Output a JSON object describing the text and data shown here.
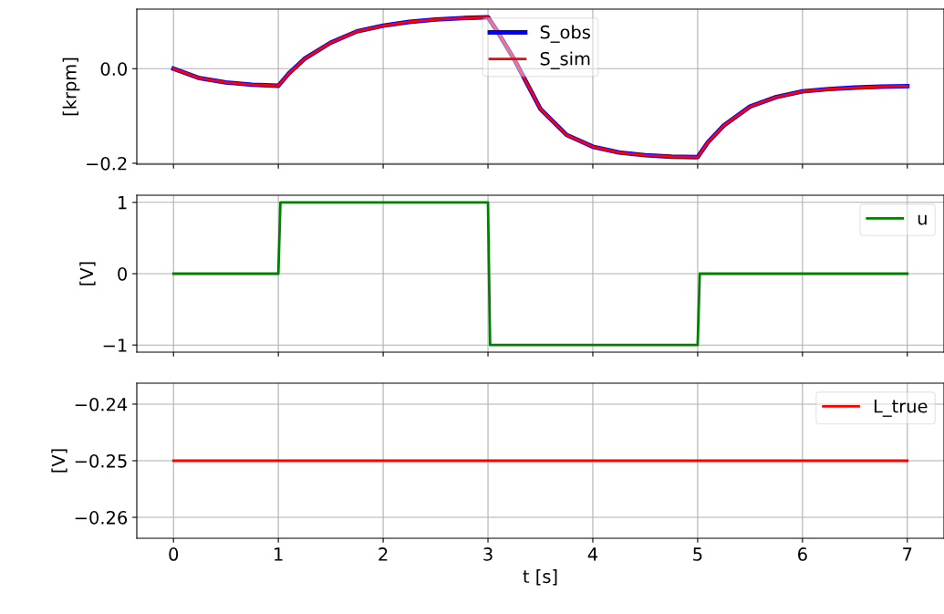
{
  "chart_data": [
    {
      "type": "line",
      "ylabel": "[krpm]",
      "legend": "top",
      "grid": true,
      "tick_labels": "y",
      "x": [
        0,
        0.25,
        0.5,
        0.75,
        1,
        1.1,
        1.25,
        1.5,
        1.75,
        2,
        2.25,
        2.5,
        2.75,
        3,
        3.1,
        3.25,
        3.5,
        3.75,
        4,
        4.25,
        4.5,
        4.75,
        5,
        5.1,
        5.25,
        5.5,
        5.75,
        6,
        6.25,
        6.5,
        6.75,
        7
      ],
      "series": [
        {
          "name": "S_obs",
          "color": "#0000ff",
          "values": [
            0,
            -0.02,
            -0.029,
            -0.034,
            -0.036,
            -0.01,
            0.021,
            0.055,
            0.079,
            0.091,
            0.099,
            0.104,
            0.107,
            0.109,
            0.075,
            0.02,
            -0.085,
            -0.14,
            -0.165,
            -0.177,
            -0.183,
            -0.186,
            -0.187,
            -0.155,
            -0.12,
            -0.08,
            -0.06,
            -0.048,
            -0.043,
            -0.04,
            -0.038,
            -0.037
          ]
        },
        {
          "name": "S_sim",
          "color": "#ff0000",
          "values": [
            0,
            -0.02,
            -0.029,
            -0.034,
            -0.036,
            -0.01,
            0.021,
            0.055,
            0.079,
            0.091,
            0.099,
            0.104,
            0.107,
            0.109,
            0.075,
            0.02,
            -0.085,
            -0.14,
            -0.165,
            -0.177,
            -0.183,
            -0.186,
            -0.187,
            -0.155,
            -0.12,
            -0.08,
            -0.06,
            -0.048,
            -0.043,
            -0.04,
            -0.038,
            -0.037
          ]
        }
      ],
      "xlim": [
        -0.35,
        7.35
      ],
      "xticks": [
        0,
        1,
        2,
        3,
        4,
        5,
        6,
        7
      ],
      "ylim": [
        -0.202,
        0.126
      ],
      "yticks": [
        {
          "value": 0,
          "label": "0.0"
        },
        {
          "value": -0.2,
          "label": "−0.2"
        }
      ]
    },
    {
      "type": "line",
      "ylabel": "[V]",
      "legend": "top right",
      "grid": true,
      "tick_labels": "y",
      "x": [
        0,
        1,
        1.02,
        3,
        3.02,
        5,
        5.02,
        7
      ],
      "series": [
        {
          "name": "u",
          "color": "#008000",
          "values": [
            0,
            0,
            1,
            1,
            -1,
            -1,
            0,
            0
          ]
        }
      ],
      "xlim": [
        -0.35,
        7.35
      ],
      "xticks": [
        0,
        1,
        2,
        3,
        4,
        5,
        6,
        7
      ],
      "ylim": [
        -1.1,
        1.1
      ],
      "yticks": [
        {
          "value": -1,
          "label": "−1"
        },
        0,
        1
      ]
    },
    {
      "type": "line",
      "ylabel": "[V]",
      "xlabel": "t [s]",
      "legend": "top right",
      "grid": true,
      "x": [
        0,
        7
      ],
      "series": [
        {
          "name": "L_true",
          "color": "#ff0000",
          "values": [
            -0.25,
            -0.25
          ]
        }
      ],
      "xlim": [
        -0.35,
        7.35
      ],
      "xticks": [
        0,
        1,
        2,
        3,
        4,
        5,
        6,
        7
      ],
      "ylim": [
        -0.2637,
        -0.2363
      ],
      "yticks": [
        {
          "value": -0.26,
          "label": "−0.26"
        },
        {
          "value": -0.25,
          "label": "−0.25"
        },
        {
          "value": -0.24,
          "label": "−0.24"
        }
      ]
    }
  ]
}
